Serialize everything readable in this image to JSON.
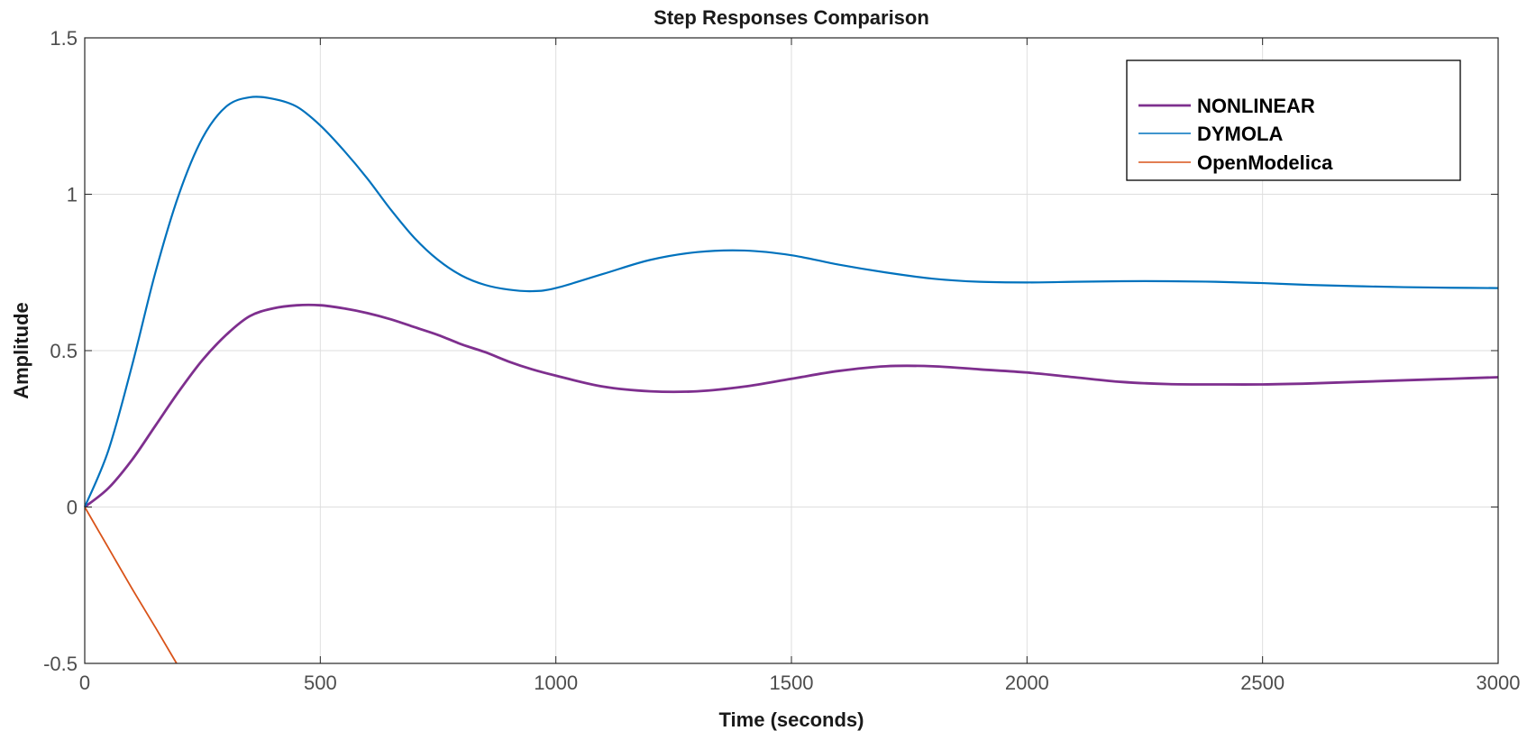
{
  "chart_data": {
    "type": "line",
    "title": "Step Responses Comparison",
    "xlabel": "Time (seconds)",
    "ylabel": "Amplitude",
    "xlim": [
      0,
      3000
    ],
    "ylim": [
      -0.5,
      1.5
    ],
    "xticks": [
      0,
      500,
      1000,
      1500,
      2000,
      2500,
      3000
    ],
    "yticks": [
      -0.5,
      0,
      0.5,
      1,
      1.5
    ],
    "xtick_labels": [
      "0",
      "500",
      "1000",
      "1500",
      "2000",
      "2500",
      "3000"
    ],
    "ytick_labels": [
      "-0.5",
      "0",
      "0.5",
      "1",
      "1.5"
    ],
    "grid": true,
    "legend_position": "top-right",
    "series": [
      {
        "name": "NONLINEAR",
        "color": "#7E2F8E",
        "x": [
          0,
          50,
          100,
          150,
          200,
          250,
          300,
          350,
          400,
          450,
          500,
          550,
          600,
          650,
          700,
          750,
          800,
          850,
          900,
          950,
          1000,
          1100,
          1200,
          1300,
          1400,
          1500,
          1600,
          1700,
          1800,
          1900,
          2000,
          2100,
          2200,
          2300,
          2400,
          2500,
          2600,
          2700,
          2800,
          2900,
          3000
        ],
        "y": [
          0,
          0.06,
          0.15,
          0.26,
          0.37,
          0.47,
          0.55,
          0.61,
          0.635,
          0.645,
          0.645,
          0.635,
          0.62,
          0.6,
          0.575,
          0.55,
          0.52,
          0.495,
          0.465,
          0.44,
          0.42,
          0.385,
          0.37,
          0.37,
          0.385,
          0.41,
          0.435,
          0.45,
          0.45,
          0.44,
          0.43,
          0.415,
          0.4,
          0.393,
          0.392,
          0.392,
          0.395,
          0.4,
          0.405,
          0.41,
          0.415
        ]
      },
      {
        "name": "DYMOLA",
        "color": "#0072BD",
        "x": [
          0,
          50,
          100,
          150,
          200,
          250,
          300,
          350,
          400,
          450,
          500,
          550,
          600,
          650,
          700,
          750,
          800,
          850,
          900,
          950,
          1000,
          1100,
          1200,
          1300,
          1400,
          1500,
          1600,
          1700,
          1800,
          1900,
          2000,
          2100,
          2200,
          2300,
          2400,
          2500,
          2600,
          2700,
          2800,
          2900,
          3000
        ],
        "y": [
          0,
          0.18,
          0.45,
          0.75,
          1.0,
          1.18,
          1.28,
          1.31,
          1.305,
          1.28,
          1.22,
          1.14,
          1.05,
          0.95,
          0.86,
          0.79,
          0.74,
          0.71,
          0.695,
          0.69,
          0.7,
          0.745,
          0.79,
          0.815,
          0.82,
          0.805,
          0.775,
          0.75,
          0.73,
          0.72,
          0.718,
          0.72,
          0.722,
          0.722,
          0.72,
          0.716,
          0.71,
          0.706,
          0.703,
          0.701,
          0.7
        ]
      },
      {
        "name": "OpenModelica",
        "color": "#D95319",
        "x": [
          0,
          50,
          100,
          150,
          195
        ],
        "y": [
          0,
          -0.13,
          -0.26,
          -0.385,
          -0.5
        ]
      }
    ]
  }
}
